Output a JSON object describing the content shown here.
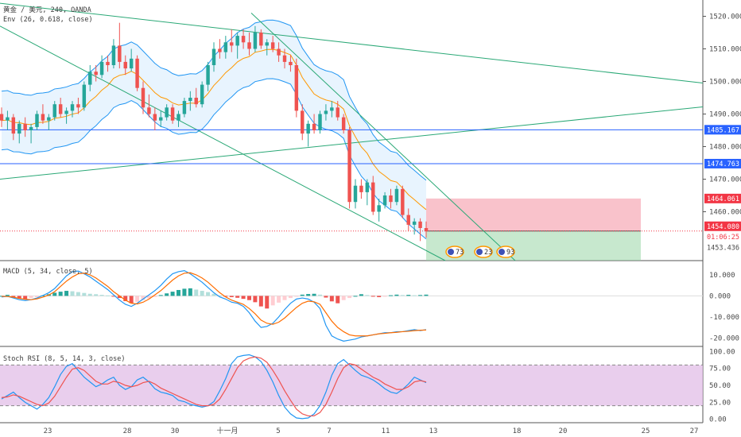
{
  "header": {
    "symbol": "黄金 / 美元, 240, OANDA",
    "indicator": "Env (26, 0.618, close)"
  },
  "colors": {
    "up": "#26a69a",
    "down": "#ef5350",
    "band": "#2196f3",
    "basis": "#ff9800",
    "trend": "#2aa876",
    "level": "#2962ff",
    "stop": "#f48fa0",
    "target": "#8fd19e",
    "stochBg": "#e1bee7",
    "macd": "#2196f3",
    "signal": "#ff6d00"
  },
  "price_axis": {
    "ticks": [
      "1520.000",
      "1510.000",
      "1500.000",
      "1490.000",
      "1480.000",
      "1470.000",
      "1460.000"
    ],
    "tags": [
      {
        "text": "1485.167",
        "color": "#2962ff"
      },
      {
        "text": "1474.763",
        "color": "#2962ff"
      },
      {
        "text": "1464.061",
        "color": "#f23645"
      },
      {
        "text": "1454.080",
        "color": "#f23645"
      },
      {
        "text": "01:06:25",
        "color": "#f23645"
      },
      {
        "text": "1453.436",
        "color": "#4a4a4a"
      }
    ]
  },
  "events": [
    "73",
    "23",
    "93"
  ],
  "macd": {
    "label": "MACD (5, 34, close, 5)",
    "ticks": [
      "10.000",
      "0.000",
      "-10.000",
      "-20.000"
    ]
  },
  "stoch": {
    "label": "Stoch RSI (8, 5, 14, 3, close)",
    "ticks": [
      "100.00",
      "75.00",
      "50.00",
      "25.00",
      "0.00"
    ]
  },
  "x_axis": {
    "ticks": [
      "23",
      "28",
      "30",
      "十一月",
      "5",
      "7",
      "11",
      "13",
      "18",
      "20",
      "25",
      "27"
    ]
  },
  "chart_data": [
    {
      "type": "candlestick",
      "title": "黄金 / 美元, 240, OANDA",
      "interval": "240",
      "ylim": [
        1445,
        1525
      ],
      "candles": [
        [
          1490,
          1492,
          1486,
          1488
        ],
        [
          1488,
          1491,
          1485,
          1489
        ],
        [
          1489,
          1490,
          1482,
          1484
        ],
        [
          1484,
          1488,
          1481,
          1487
        ],
        [
          1487,
          1489,
          1483,
          1485
        ],
        [
          1485,
          1487,
          1481,
          1486
        ],
        [
          1486,
          1491,
          1485,
          1490
        ],
        [
          1490,
          1493,
          1487,
          1488
        ],
        [
          1488,
          1490,
          1485,
          1489
        ],
        [
          1489,
          1494,
          1488,
          1493
        ],
        [
          1493,
          1495,
          1489,
          1490
        ],
        [
          1490,
          1492,
          1487,
          1491
        ],
        [
          1491,
          1494,
          1489,
          1493
        ],
        [
          1493,
          1495,
          1490,
          1492
        ],
        [
          1492,
          1500,
          1491,
          1499
        ],
        [
          1499,
          1505,
          1497,
          1503
        ],
        [
          1503,
          1505,
          1500,
          1502
        ],
        [
          1502,
          1508,
          1501,
          1506
        ],
        [
          1506,
          1508,
          1503,
          1505
        ],
        [
          1505,
          1513,
          1504,
          1511
        ],
        [
          1511,
          1518,
          1504,
          1506
        ],
        [
          1506,
          1508,
          1502,
          1504
        ],
        [
          1504,
          1510,
          1503,
          1507
        ],
        [
          1507,
          1508,
          1497,
          1498
        ],
        [
          1498,
          1500,
          1490,
          1492
        ],
        [
          1492,
          1496,
          1489,
          1490
        ],
        [
          1490,
          1492,
          1485,
          1488
        ],
        [
          1488,
          1491,
          1486,
          1489
        ],
        [
          1489,
          1493,
          1488,
          1492
        ],
        [
          1492,
          1493,
          1487,
          1488
        ],
        [
          1488,
          1491,
          1486,
          1490
        ],
        [
          1490,
          1495,
          1489,
          1494
        ],
        [
          1494,
          1497,
          1491,
          1495
        ],
        [
          1495,
          1498,
          1492,
          1493
        ],
        [
          1493,
          1500,
          1492,
          1499
        ],
        [
          1499,
          1506,
          1497,
          1505
        ],
        [
          1505,
          1512,
          1503,
          1510
        ],
        [
          1510,
          1513,
          1507,
          1509
        ],
        [
          1509,
          1514,
          1507,
          1512
        ],
        [
          1512,
          1516,
          1509,
          1511
        ],
        [
          1511,
          1515,
          1507,
          1514
        ],
        [
          1514,
          1516,
          1510,
          1512
        ],
        [
          1512,
          1515,
          1508,
          1510
        ],
        [
          1510,
          1517,
          1509,
          1515
        ],
        [
          1515,
          1516,
          1510,
          1511
        ],
        [
          1511,
          1513,
          1508,
          1512
        ],
        [
          1512,
          1514,
          1509,
          1510
        ],
        [
          1510,
          1512,
          1506,
          1508
        ],
        [
          1508,
          1510,
          1504,
          1506
        ],
        [
          1506,
          1508,
          1503,
          1505
        ],
        [
          1505,
          1507,
          1489,
          1491
        ],
        [
          1491,
          1493,
          1482,
          1484
        ],
        [
          1484,
          1488,
          1480,
          1487
        ],
        [
          1487,
          1490,
          1484,
          1485
        ],
        [
          1485,
          1491,
          1484,
          1490
        ],
        [
          1490,
          1493,
          1488,
          1491
        ],
        [
          1491,
          1494,
          1489,
          1492
        ],
        [
          1492,
          1494,
          1488,
          1489
        ],
        [
          1489,
          1490,
          1484,
          1485
        ],
        [
          1485,
          1486,
          1461,
          1463
        ],
        [
          1463,
          1470,
          1461,
          1468
        ],
        [
          1468,
          1470,
          1464,
          1466
        ],
        [
          1466,
          1470,
          1462,
          1469
        ],
        [
          1469,
          1471,
          1459,
          1460
        ],
        [
          1460,
          1464,
          1457,
          1462
        ],
        [
          1462,
          1466,
          1461,
          1465
        ],
        [
          1465,
          1467,
          1461,
          1463
        ],
        [
          1463,
          1468,
          1462,
          1467
        ],
        [
          1467,
          1468,
          1458,
          1459
        ],
        [
          1459,
          1461,
          1454,
          1456
        ],
        [
          1456,
          1458,
          1453,
          1457
        ],
        [
          1457,
          1458,
          1451,
          1455
        ],
        [
          1455,
          1457,
          1452,
          1454
        ]
      ],
      "envelope": {
        "name": "Env (26, 0.618, close)"
      },
      "lines": [
        "1485.167",
        "1474.763"
      ],
      "position": {
        "entry": "1454.080",
        "stop": "1464.061",
        "target_bottom": "1445"
      }
    },
    {
      "type": "bar",
      "title": "MACD (5, 34, close, 5)",
      "ylim": [
        -24,
        16
      ],
      "histogram": [
        0,
        0.5,
        -0.8,
        -1.2,
        -1.5,
        -1.0,
        -0.6,
        0.2,
        0.8,
        1.5,
        2.0,
        2.4,
        2.2,
        1.8,
        1.4,
        1.0,
        0.8,
        0.5,
        0.2,
        -0.2,
        -1.0,
        -2.5,
        -3.5,
        -2.8,
        -2.0,
        -1.2,
        -0.5,
        0.4,
        1.2,
        2.0,
        2.8,
        3.4,
        3.6,
        3.0,
        2.4,
        1.8,
        1.0,
        0.2,
        -0.4,
        -0.6,
        -0.9,
        -1.4,
        -2.0,
        -3.0,
        -5.0,
        -6.0,
        -4.5,
        -3.2,
        -2.0,
        -1.0,
        -0.2,
        0.6,
        0.9,
        1.0,
        0.6,
        -0.8,
        -2.6,
        -3.5,
        -2.0,
        -1.0,
        0.0,
        0.8,
        0.4,
        -0.3,
        -0.6,
        -0.2,
        0.3,
        0.6,
        0.4,
        0.5,
        0.3,
        0.4,
        0.6
      ],
      "macd": [
        -0.5,
        -0.2,
        -1.0,
        -1.8,
        -2.2,
        -1.8,
        -1.0,
        0.2,
        1.5,
        3.5,
        6.5,
        9.5,
        11.5,
        11.8,
        10.5,
        9.0,
        7.0,
        5.0,
        3.0,
        0.5,
        -2.0,
        -4.0,
        -5.0,
        -3.5,
        -1.5,
        0.5,
        2.5,
        5.0,
        8.0,
        10.5,
        11.5,
        12.0,
        10.5,
        8.5,
        6.5,
        4.0,
        1.5,
        -0.5,
        -1.5,
        -3.0,
        -3.5,
        -5.0,
        -8.0,
        -12.0,
        -15.0,
        -14.5,
        -13.0,
        -10.0,
        -6.5,
        -3.5,
        -1.5,
        -1.0,
        -1.5,
        -3.0,
        -6.0,
        -14.0,
        -19.0,
        -20.5,
        -21.5,
        -21.0,
        -20.5,
        -19.5,
        -19.0,
        -18.5,
        -18.0,
        -17.5,
        -17.5,
        -17.0,
        -17.0,
        -16.5,
        -16.0,
        -16.5,
        -16.0
      ],
      "signal": [
        -0.2,
        -0.3,
        -0.6,
        -1.2,
        -1.6,
        -1.8,
        -1.4,
        -0.6,
        0.4,
        2.0,
        4.5,
        7.0,
        9.0,
        10.5,
        10.8,
        10.0,
        8.5,
        6.5,
        4.5,
        2.0,
        0.0,
        -2.0,
        -3.5,
        -3.8,
        -3.0,
        -1.5,
        0.5,
        2.5,
        5.0,
        7.5,
        9.5,
        10.8,
        11.0,
        10.0,
        8.5,
        6.5,
        4.0,
        1.5,
        -0.5,
        -2.0,
        -3.0,
        -4.0,
        -6.0,
        -8.5,
        -11.5,
        -13.0,
        -13.5,
        -12.5,
        -10.5,
        -8.0,
        -5.5,
        -3.5,
        -2.5,
        -2.8,
        -4.0,
        -8.0,
        -12.0,
        -15.0,
        -17.0,
        -18.5,
        -19.0,
        -19.0,
        -19.0,
        -18.5,
        -18.0,
        -17.8,
        -17.5,
        -17.3,
        -17.0,
        -16.8,
        -16.5,
        -16.3,
        -16.2
      ]
    },
    {
      "type": "line",
      "title": "Stoch RSI (8, 5, 14, 3, close)",
      "ylim": [
        -5,
        105
      ],
      "bands": [
        20,
        80
      ],
      "k": [
        30,
        35,
        40,
        32,
        25,
        20,
        15,
        22,
        32,
        48,
        66,
        78,
        82,
        72,
        62,
        55,
        48,
        52,
        58,
        62,
        50,
        44,
        48,
        58,
        62,
        55,
        45,
        40,
        38,
        35,
        28,
        26,
        22,
        20,
        18,
        20,
        26,
        42,
        60,
        82,
        92,
        94,
        95,
        92,
        85,
        72,
        55,
        35,
        18,
        8,
        2,
        1,
        2,
        8,
        20,
        40,
        65,
        82,
        88,
        80,
        72,
        65,
        62,
        58,
        52,
        45,
        40,
        38,
        44,
        52,
        62,
        58,
        54
      ],
      "d": [
        32,
        33,
        36,
        34,
        30,
        26,
        22,
        20,
        24,
        34,
        48,
        62,
        74,
        76,
        72,
        64,
        56,
        52,
        52,
        56,
        54,
        50,
        48,
        50,
        54,
        56,
        52,
        46,
        42,
        38,
        34,
        30,
        26,
        22,
        20,
        20,
        22,
        30,
        44,
        60,
        76,
        86,
        90,
        92,
        90,
        84,
        72,
        58,
        42,
        28,
        15,
        8,
        5,
        5,
        10,
        22,
        40,
        60,
        76,
        82,
        80,
        74,
        68,
        62,
        58,
        52,
        48,
        44,
        44,
        48,
        55,
        57,
        55
      ]
    }
  ]
}
